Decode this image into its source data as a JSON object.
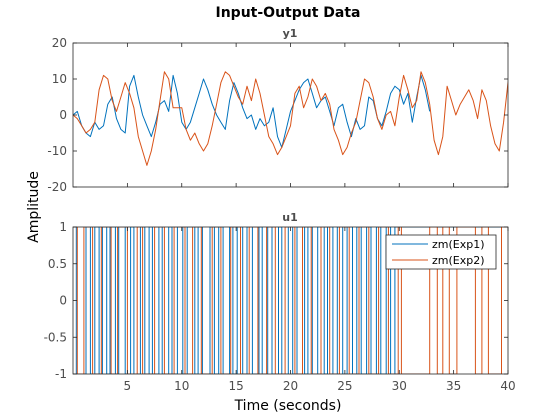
{
  "chart_data": {
    "type": "line",
    "title": "Input-Output Data",
    "xlabel": "Time (seconds)",
    "ylabel": "Amplitude",
    "xlim": [
      0,
      40
    ],
    "x_ticks": [
      5,
      10,
      15,
      20,
      25,
      30,
      35,
      40
    ],
    "grid": false,
    "legend": {
      "placement": "top-right of lower axes",
      "entries": [
        "zm(Exp1)",
        "zm(Exp2)"
      ]
    },
    "colors": {
      "Exp1": "#0072BD",
      "Exp2": "#D95319"
    },
    "panels": [
      {
        "name": "y1",
        "ylim": [
          -20,
          20
        ],
        "y_ticks": [
          -20,
          -10,
          0,
          10,
          20
        ],
        "series": [
          {
            "name": "zm(Exp1)",
            "color": "#0072BD",
            "x_step": 0.4,
            "x_start": 0,
            "values": [
              0,
              1,
              -3,
              -5,
              -6,
              -2,
              -4,
              -3,
              3,
              5,
              -1,
              -4,
              -5,
              8,
              11,
              5,
              0,
              -3,
              -6,
              -2,
              3,
              4,
              1,
              11,
              6,
              -2,
              -4,
              -2,
              2,
              6,
              10,
              7,
              3,
              0,
              -2,
              -4,
              4,
              9,
              6,
              2,
              -1,
              0,
              -4,
              -1,
              -3,
              -2,
              2,
              -6,
              -9,
              -4,
              1,
              4,
              7,
              9,
              10,
              6,
              2,
              4,
              5,
              1,
              -3,
              2,
              3,
              -2,
              -6,
              -1,
              -4,
              -3,
              5,
              4,
              -1,
              -3,
              1,
              6,
              8,
              7,
              3,
              6,
              -2,
              5,
              11,
              7,
              1
            ]
          },
          {
            "name": "zm(Exp2)",
            "color": "#D95319",
            "x_step": 0.4,
            "x_start": 0,
            "values": [
              0,
              -1,
              -3,
              -5,
              -4,
              -2,
              7,
              11,
              10,
              4,
              1,
              5,
              9,
              6,
              2,
              -6,
              -10,
              -14,
              -10,
              -4,
              4,
              12,
              10,
              2,
              2,
              2,
              -4,
              -7,
              -5,
              -8,
              -10,
              -8,
              -3,
              3,
              9,
              12,
              11,
              8,
              5,
              3,
              8,
              4,
              10,
              6,
              0,
              -6,
              -8,
              -11,
              -9,
              -6,
              -3,
              6,
              8,
              2,
              5,
              10,
              8,
              4,
              6,
              3,
              -4,
              -7,
              -11,
              -9,
              -5,
              -2,
              4,
              10,
              9,
              5,
              -1,
              -4,
              0,
              1,
              -3,
              5,
              11,
              7,
              2,
              4,
              12,
              9,
              3,
              -7,
              -11,
              -6,
              8,
              4,
              0,
              3,
              5,
              7,
              4,
              -1,
              7,
              4,
              -3,
              -8,
              -10,
              -2,
              9,
              13,
              11,
              4,
              -2,
              -6,
              -3,
              8,
              10,
              6,
              4,
              6,
              2,
              0,
              -2,
              1,
              -3,
              3,
              -4,
              -9
            ]
          }
        ]
      },
      {
        "name": "u1",
        "ylim": [
          -1,
          1
        ],
        "y_ticks": [
          -1,
          -0.5,
          0,
          0.5,
          1
        ],
        "series": [
          {
            "name": "zm(Exp1)",
            "color": "#0072BD",
            "switch_times": [
              0.3,
              1.2,
              1.6,
              2.0,
              2.4,
              2.7,
              3.1,
              3.4,
              3.9,
              4.2,
              4.8,
              5.3,
              5.6,
              6.2,
              6.6,
              7.0,
              7.3,
              7.9,
              8.2,
              8.8,
              9.1,
              9.6,
              10.1,
              10.5,
              11.2,
              11.5,
              11.9,
              12.6,
              13.0,
              13.4,
              13.8,
              14.4,
              14.7,
              15.1,
              15.6,
              16.0,
              16.5,
              17.1,
              17.4,
              17.9,
              18.3,
              18.9,
              19.2,
              19.8,
              20.2,
              20.6,
              21.3,
              21.6,
              22.0,
              22.5,
              23.1,
              23.4,
              23.9,
              24.3,
              24.8,
              25.2,
              25.7,
              26.1,
              26.5,
              27.0,
              27.4,
              27.9,
              28.3,
              28.8,
              29.2,
              29.6
            ],
            "start_level": 1
          },
          {
            "name": "zm(Exp2)",
            "color": "#D95319",
            "switch_times": [
              0.4,
              1.0,
              1.8,
              2.6,
              3.5,
              4.1,
              5.0,
              5.9,
              6.4,
              7.5,
              8.4,
              9.3,
              10.3,
              11.0,
              11.8,
              12.8,
              13.6,
              14.5,
              15.4,
              16.2,
              17.0,
              17.8,
              18.6,
              19.5,
              20.4,
              21.1,
              21.9,
              22.8,
              23.6,
              24.5,
              25.4,
              26.3,
              27.2,
              28.1,
              29.0,
              29.9,
              30.2,
              32.8,
              33.5,
              34.0,
              34.6,
              35.3,
              37.0,
              37.6,
              38.2,
              39.4
            ],
            "start_level": 1
          }
        ]
      }
    ]
  }
}
